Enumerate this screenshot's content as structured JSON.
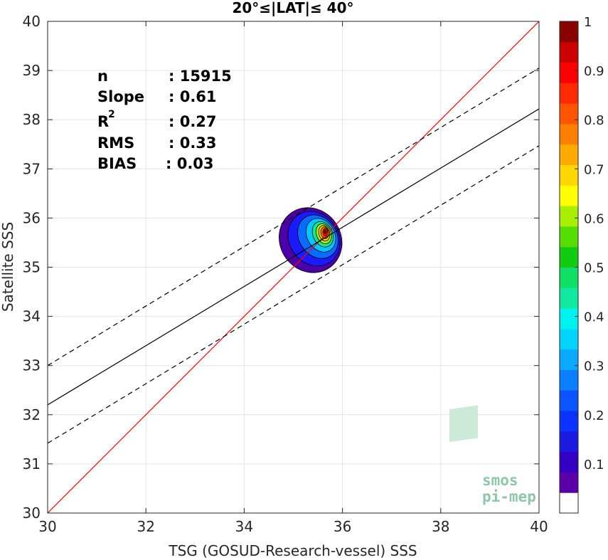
{
  "chart_data": {
    "type": "heatmap",
    "title": "20°≤|LAT|≤ 40°",
    "xlabel": "TSG (GOSUD-Research-vessel) SSS",
    "ylabel": "Satellite SSS",
    "xlim": [
      30,
      40
    ],
    "ylim": [
      30,
      40
    ],
    "xticks": [
      30,
      32,
      34,
      36,
      38,
      40
    ],
    "yticks": [
      30,
      31,
      32,
      33,
      34,
      35,
      36,
      37,
      38,
      39,
      40
    ],
    "grid": true,
    "stats": {
      "n_label": "n",
      "n_value": ": 15915",
      "slope_label": "Slope",
      "slope_value": ": 0.61",
      "r2_label": "R",
      "r2_sup": "2",
      "r2_value": ": 0.27",
      "rms_label": "RMS",
      "rms_value": ": 0.33",
      "bias_label": "BIAS",
      "bias_value": ": 0.03"
    },
    "lines": [
      {
        "name": "identity",
        "style": "solid",
        "color": "#ff0000",
        "x": [
          30,
          40
        ],
        "y": [
          30,
          40
        ]
      },
      {
        "name": "regression",
        "style": "solid",
        "color": "#000000",
        "x": [
          30,
          40
        ],
        "y": [
          32.2,
          38.22
        ]
      },
      {
        "name": "upper-bound",
        "style": "dashed",
        "color": "#000000",
        "x": [
          30,
          40
        ],
        "y": [
          33.0,
          39.05
        ]
      },
      {
        "name": "lower-bound",
        "style": "dashed",
        "color": "#000000",
        "x": [
          30,
          40
        ],
        "y": [
          31.42,
          37.47
        ]
      }
    ],
    "density": {
      "center": [
        35.65,
        35.7
      ],
      "levels": [
        {
          "level": 0.05,
          "color": "#4b00a8",
          "cx": 35.35,
          "cy": 35.55,
          "rx": 0.62,
          "ry": 0.68,
          "rot": 35
        },
        {
          "level": 0.15,
          "color": "#1a1aff",
          "cx": 35.42,
          "cy": 35.58,
          "rx": 0.5,
          "ry": 0.58,
          "rot": 35
        },
        {
          "level": 0.25,
          "color": "#0a6cff",
          "cx": 35.5,
          "cy": 35.62,
          "rx": 0.38,
          "ry": 0.47,
          "rot": 35
        },
        {
          "level": 0.35,
          "color": "#00c8ff",
          "cx": 35.56,
          "cy": 35.65,
          "rx": 0.28,
          "ry": 0.36,
          "rot": 30
        },
        {
          "level": 0.45,
          "color": "#15e890",
          "cx": 35.6,
          "cy": 35.67,
          "rx": 0.2,
          "ry": 0.27,
          "rot": 25
        },
        {
          "level": 0.55,
          "color": "#a8f000",
          "cx": 35.62,
          "cy": 35.68,
          "rx": 0.15,
          "ry": 0.21,
          "rot": 20
        },
        {
          "level": 0.65,
          "color": "#ffd000",
          "cx": 35.63,
          "cy": 35.69,
          "rx": 0.11,
          "ry": 0.16,
          "rot": 15
        },
        {
          "level": 0.75,
          "color": "#ff7a00",
          "cx": 35.64,
          "cy": 35.7,
          "rx": 0.08,
          "ry": 0.12,
          "rot": 10
        },
        {
          "level": 0.85,
          "color": "#ff1500",
          "cx": 35.65,
          "cy": 35.71,
          "rx": 0.05,
          "ry": 0.08,
          "rot": 0
        },
        {
          "level": 0.95,
          "color": "#8b0000",
          "cx": 35.65,
          "cy": 35.72,
          "rx": 0.025,
          "ry": 0.04,
          "rot": 0
        }
      ]
    },
    "colorbar": {
      "colors": [
        "#ffffff",
        "#5a00a8",
        "#3300c4",
        "#1a1ae0",
        "#0a33ff",
        "#0a55ff",
        "#0a7fff",
        "#0aa8ff",
        "#00d4ff",
        "#00f2ee",
        "#11e8a0",
        "#11e066",
        "#11cc11",
        "#55dd00",
        "#a8f000",
        "#ffff00",
        "#ffd600",
        "#ffaa00",
        "#ff7f00",
        "#ff5500",
        "#ff2a00",
        "#ff0000",
        "#cc0000",
        "#8b0000"
      ],
      "ticks": [
        0.1,
        0.2,
        0.3,
        0.4,
        0.5,
        0.6,
        0.7,
        0.8,
        0.9,
        1
      ],
      "tick_labels": [
        "0.1",
        "0.2",
        "0.3",
        "0.4",
        "0.5",
        "0.6",
        "0.7",
        "0.8",
        "0.9",
        "1"
      ]
    }
  },
  "logo": {
    "line1": "smos",
    "line2": "pi-mep"
  }
}
